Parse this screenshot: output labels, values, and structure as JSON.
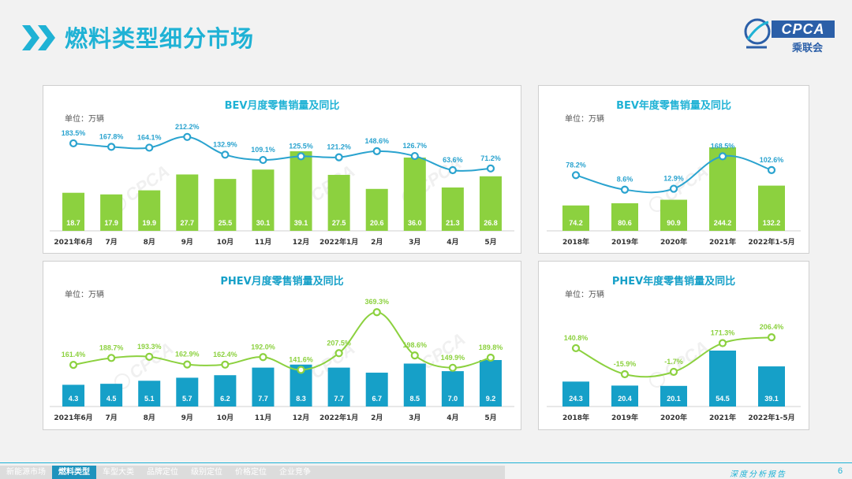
{
  "page": {
    "title": "燃料类型细分市场",
    "logo_text": "CPCA",
    "logo_sub": "乘联会",
    "page_number": "6",
    "report_label": "深度分析报告",
    "nav": [
      {
        "label": "新能源市场",
        "active": false
      },
      {
        "label": "燃料类型",
        "active": true
      },
      {
        "label": "车型大类",
        "active": false
      },
      {
        "label": "品牌定位",
        "active": false
      },
      {
        "label": "级别定位",
        "active": false
      },
      {
        "label": "价格定位",
        "active": false
      },
      {
        "label": "企业竞争",
        "active": false
      }
    ],
    "colors": {
      "accent": "#1fb2d5",
      "bev_bar": "#8cd13f",
      "bev_line": "#2aa3cf",
      "phev_bar": "#16a0c8",
      "phev_line": "#8cd13f"
    }
  },
  "chart_data": [
    {
      "type": "bar",
      "title": "BEV月度零售销量及同比",
      "unit_label": "单位：万辆",
      "categories": [
        "2021年6月",
        "7月",
        "8月",
        "9月",
        "10月",
        "11月",
        "12月",
        "2022年1月",
        "2月",
        "3月",
        "4月",
        "5月"
      ],
      "series": [
        {
          "values": [
            18.7,
            17.9,
            19.9,
            27.7,
            25.5,
            30.1,
            39.1,
            27.5,
            20.6,
            36.0,
            21.3,
            26.8
          ],
          "labels": [
            "18.7",
            "17.9",
            "19.9",
            "27.7",
            "25.5",
            "30.1",
            "39.1",
            "27.5",
            "20.6",
            "36.0",
            "21.3",
            "26.8"
          ]
        },
        {
          "type": "line",
          "values": [
            183.5,
            167.8,
            164.1,
            212.2,
            132.9,
            109.1,
            125.5,
            121.2,
            148.6,
            126.7,
            63.6,
            71.2
          ],
          "labels": [
            "183.5%",
            "167.8%",
            "164.1%",
            "212.2%",
            "132.9%",
            "109.1%",
            "125.5%",
            "121.2%",
            "148.6%",
            "126.7%",
            "63.6%",
            "71.2%"
          ]
        }
      ]
    },
    {
      "type": "bar",
      "title": "BEV年度零售销量及同比",
      "unit_label": "单位：万辆",
      "categories": [
        "2018年",
        "2019年",
        "2020年",
        "2021年",
        "2022年1-5月"
      ],
      "series": [
        {
          "values": [
            74.2,
            80.6,
            90.9,
            244.2,
            132.2
          ],
          "labels": [
            "74.2",
            "80.6",
            "90.9",
            "244.2",
            "132.2"
          ]
        },
        {
          "type": "line",
          "values": [
            78.2,
            8.6,
            12.9,
            168.5,
            102.6
          ],
          "labels": [
            "78.2%",
            "8.6%",
            "12.9%",
            "168.5%",
            "102.6%"
          ]
        }
      ]
    },
    {
      "type": "bar",
      "title": "PHEV月度零售销量及同比",
      "unit_label": "单位：万辆",
      "categories": [
        "2021年6月",
        "7月",
        "8月",
        "9月",
        "10月",
        "11月",
        "12月",
        "2022年1月",
        "2月",
        "3月",
        "4月",
        "5月"
      ],
      "series": [
        {
          "values": [
            4.3,
            4.5,
            5.1,
            5.7,
            6.2,
            7.7,
            8.3,
            7.7,
            6.7,
            8.5,
            7.0,
            9.2
          ],
          "labels": [
            "4.3",
            "4.5",
            "5.1",
            "5.7",
            "6.2",
            "7.7",
            "8.3",
            "7.7",
            "6.7",
            "8.5",
            "7.0",
            "9.2"
          ]
        },
        {
          "type": "line",
          "values": [
            161.4,
            188.7,
            193.3,
            162.9,
            162.4,
            192.0,
            141.6,
            207.5,
            369.3,
            198.6,
            149.9,
            189.8
          ],
          "labels": [
            "161.4%",
            "188.7%",
            "193.3%",
            "162.9%",
            "162.4%",
            "192.0%",
            "141.6%",
            "207.5%",
            "369.3%",
            "198.6%",
            "149.9%",
            "189.8%"
          ]
        }
      ]
    },
    {
      "type": "bar",
      "title": "PHEV年度零售销量及同比",
      "unit_label": "单位：万辆",
      "categories": [
        "2018年",
        "2019年",
        "2020年",
        "2021年",
        "2022年1-5月"
      ],
      "series": [
        {
          "values": [
            24.3,
            20.4,
            20.1,
            54.5,
            39.1
          ],
          "labels": [
            "24.3",
            "20.4",
            "20.1",
            "54.5",
            "39.1"
          ]
        },
        {
          "type": "line",
          "values": [
            140.8,
            -15.9,
            -1.7,
            171.3,
            206.4
          ],
          "labels": [
            "140.8%",
            "-15.9%",
            "-1.7%",
            "171.3%",
            "206.4%"
          ]
        }
      ]
    }
  ]
}
